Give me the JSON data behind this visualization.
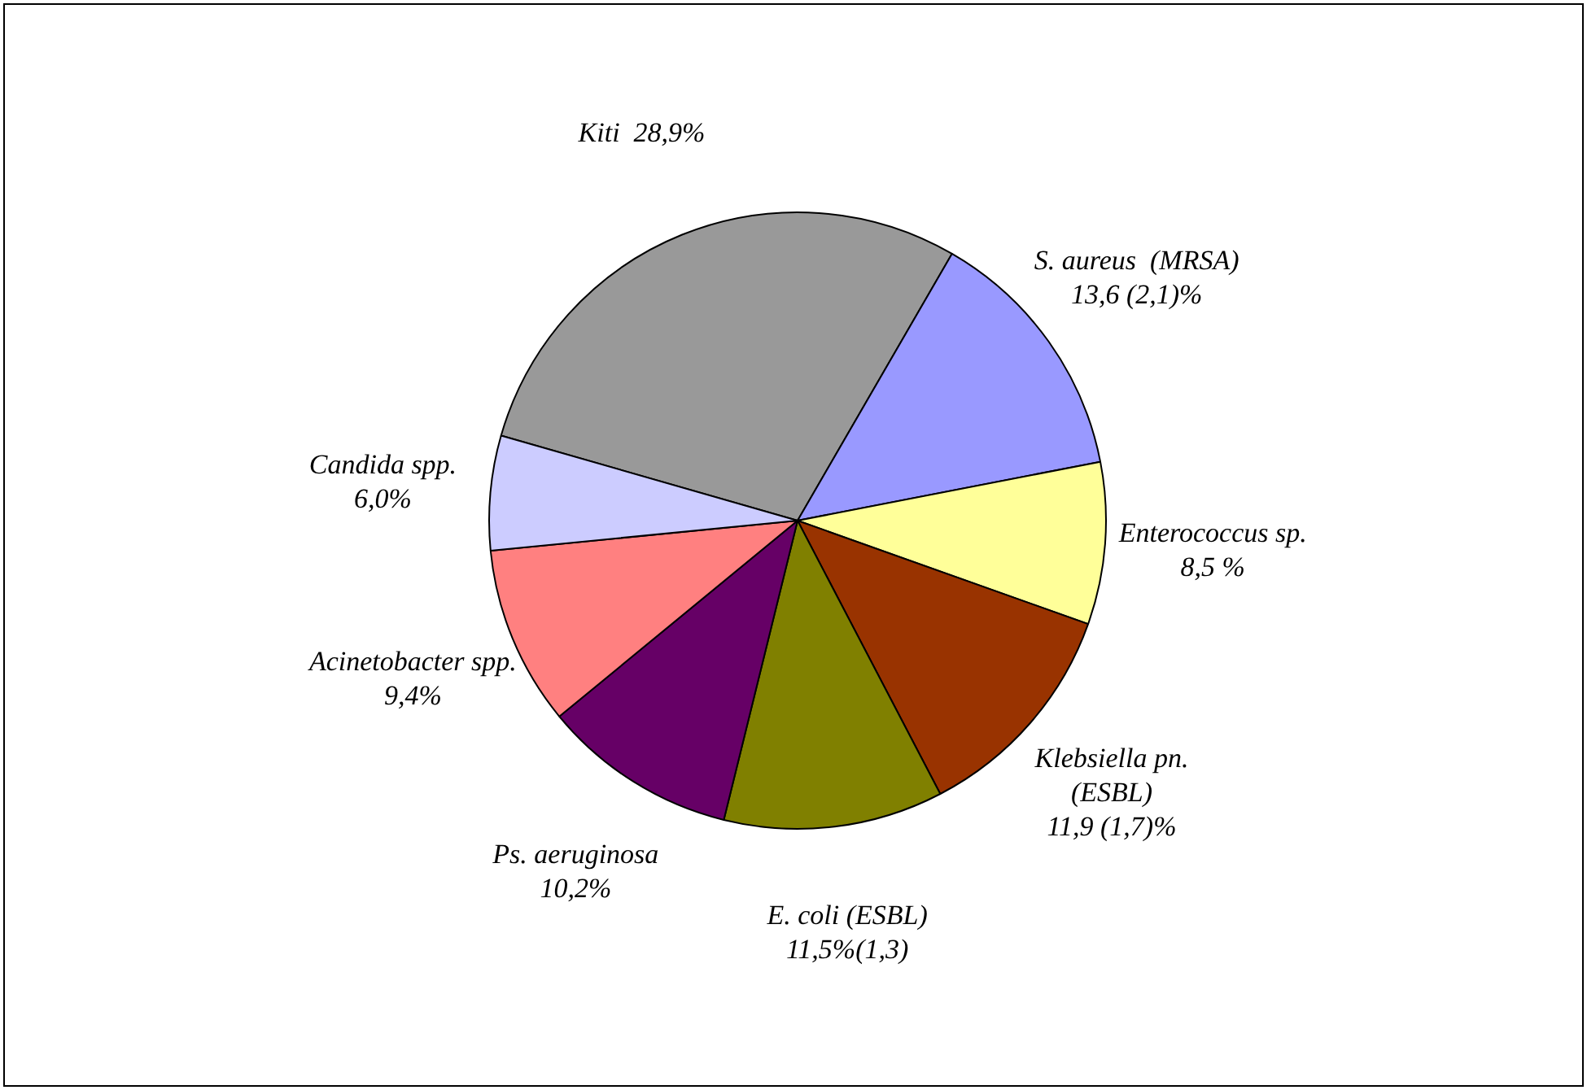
{
  "chart_data": {
    "type": "pie",
    "categories": [
      "Kiti",
      "S. aureus  (MRSA)",
      "Enterococcus sp.",
      "Klebsiella pn. (ESBL)",
      "E. coli (ESBL)",
      "Ps. aeruginosa",
      "Acinetobacter spp.",
      "Candida spp."
    ],
    "values": [
      28.9,
      13.6,
      8.5,
      11.9,
      11.5,
      10.2,
      9.4,
      6.0
    ],
    "value_labels": [
      "28,9%",
      "13,6 (2,1)%",
      "8,5 %",
      "11,9 (1,7)%",
      "11,5%(1,3)",
      "10,2%",
      "9,4%",
      "6,0%"
    ],
    "colors": [
      "#999999",
      "#9999ff",
      "#ffff99",
      "#993300",
      "#808000",
      "#660066",
      "#ff8080",
      "#ccccff"
    ],
    "legend": false
  }
}
